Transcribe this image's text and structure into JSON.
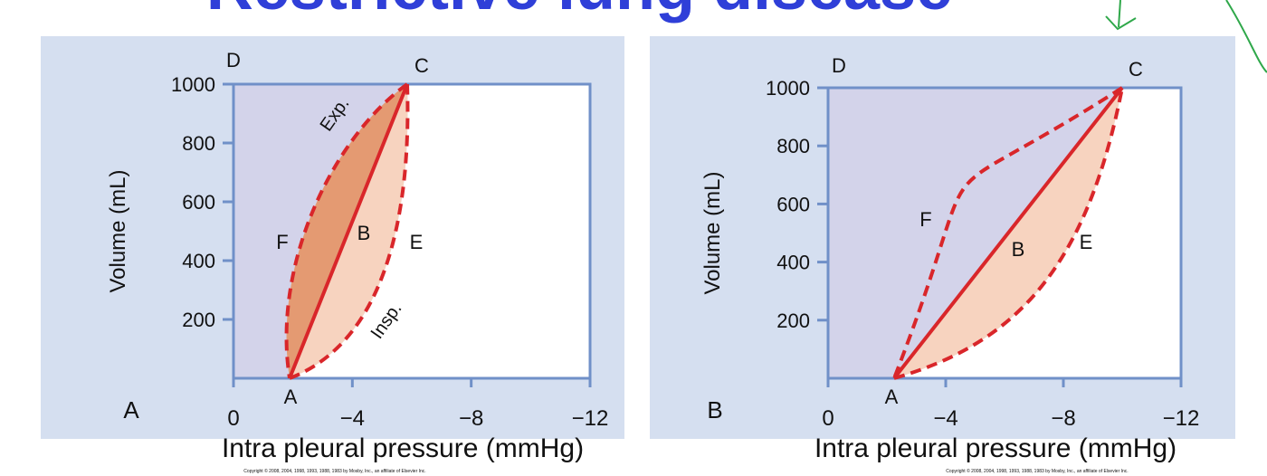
{
  "title": "Restrictive lung disease",
  "panels": [
    {
      "letter": "A",
      "y_label": "Volume (mL)",
      "x_label": "Intra pleural pressure (mmHg)",
      "y_ticks": [
        "200",
        "400",
        "600",
        "800",
        "1000"
      ],
      "x_ticks": [
        "0",
        "−4",
        "−8",
        "−12"
      ],
      "point_labels": [
        "D",
        "C",
        "A",
        "F",
        "B",
        "E"
      ],
      "annotations": [
        "Exp.",
        "Insp."
      ],
      "copyright": "Copyright © 2008, 2004, 1998, 1993, 1988, 1983 by Mosby, Inc., an affiliate of Elsevier Inc."
    },
    {
      "letter": "B",
      "y_label": "Volume (mL)",
      "x_label": "Intra pleural pressure (mmHg)",
      "y_ticks": [
        "200",
        "400",
        "600",
        "800",
        "1000"
      ],
      "x_ticks": [
        "0",
        "−4",
        "−8",
        "−12"
      ],
      "point_labels": [
        "D",
        "C",
        "A",
        "F",
        "B",
        "E"
      ],
      "annotations": [],
      "copyright": "Copyright © 2008, 2004, 1998, 1993, 1988, 1983 by Mosby, Inc., an affiliate of Elsevier Inc."
    }
  ]
}
